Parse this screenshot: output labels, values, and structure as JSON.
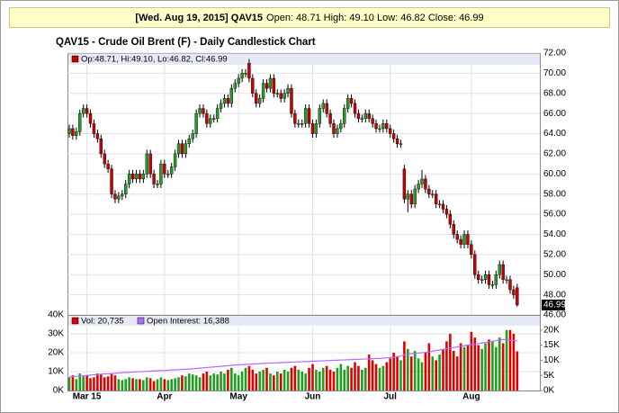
{
  "header": {
    "title": "[Wed. Aug 19, 2015] QAV15",
    "values": "Open: 48.71 High: 49.10 Low: 46.82 Close: 46.99"
  },
  "chart_data": [
    {
      "type": "candlestick",
      "title": "QAV15 - Crude Oil Brent (F) - Daily Candlestick Chart",
      "legend": "Op:48.71, Hi:49.10, Lo:46.82, Cl:46.99",
      "up_color": "#2a9a2a",
      "down_color": "#c80000",
      "open": [
        64.0,
        64.5,
        63.8,
        64.2,
        66.0,
        66.5,
        66.0,
        65.0,
        64.0,
        63.5,
        62.0,
        61.0,
        60.5,
        58.0,
        57.5,
        57.8,
        58.0,
        59.0,
        60.0,
        59.5,
        60.0,
        59.5,
        60.0,
        62.0,
        60.0,
        59.0,
        59.0,
        61.0,
        60.0,
        60.0,
        60.7,
        62.0,
        63.0,
        62.0,
        63.0,
        63.5,
        64.0,
        66.0,
        66.5,
        66.0,
        65.0,
        65.5,
        65.5,
        66.5,
        67.0,
        67.5,
        67.0,
        68.5,
        69.0,
        69.5,
        70.0,
        71.0,
        69.5,
        68.0,
        67.0,
        67.5,
        69.0,
        68.5,
        69.5,
        68.0,
        68.0,
        67.5,
        68.0,
        68.5,
        66.0,
        65.0,
        65.0,
        65.0,
        66.5,
        65.0,
        64.0,
        65.0,
        66.5,
        67.0,
        66.0,
        65.0,
        64.0,
        64.5,
        65.0,
        66.5,
        67.5,
        67.0,
        66.0,
        65.5,
        65.5,
        66.0,
        65.5,
        65.0,
        64.5,
        64.5,
        65.0,
        64.5,
        64.0,
        63.5,
        63.0,
        60.5,
        57.5,
        58.0,
        57.0,
        58.5,
        59.0,
        59.5,
        58.5,
        58.0,
        58.0,
        57.0,
        57.0,
        56.5,
        56.0,
        55.0,
        54.0,
        53.5,
        53.0,
        54.0,
        53.0,
        52.0,
        50.0,
        49.5,
        49.5,
        50.0,
        49.0,
        49.0,
        50.0,
        51.0,
        49.5,
        49.5,
        48.5,
        48.71
      ],
      "high": [
        64.9,
        64.9,
        64.6,
        66.4,
        66.9,
        66.9,
        66.4,
        65.4,
        64.4,
        63.9,
        62.4,
        61.4,
        60.9,
        58.4,
        58.2,
        58.4,
        59.4,
        60.4,
        60.4,
        60.4,
        60.4,
        60.4,
        62.4,
        62.4,
        60.4,
        59.4,
        61.4,
        61.4,
        60.4,
        61.1,
        62.4,
        63.4,
        63.4,
        63.4,
        63.9,
        64.4,
        66.4,
        66.9,
        66.9,
        66.4,
        65.9,
        65.9,
        66.9,
        67.4,
        67.9,
        67.9,
        68.9,
        69.4,
        69.9,
        70.4,
        70.4,
        71.4,
        69.9,
        68.4,
        67.9,
        69.4,
        69.4,
        69.9,
        69.9,
        68.4,
        68.4,
        68.4,
        68.9,
        68.9,
        66.4,
        65.4,
        65.4,
        66.9,
        66.9,
        65.4,
        65.4,
        66.9,
        67.4,
        67.4,
        66.4,
        65.4,
        64.9,
        65.4,
        66.9,
        67.9,
        67.9,
        67.4,
        66.4,
        65.9,
        66.4,
        66.4,
        65.9,
        65.4,
        64.9,
        65.4,
        65.4,
        64.9,
        64.4,
        63.9,
        63.4,
        60.9,
        58.4,
        58.4,
        58.9,
        59.4,
        60.4,
        59.9,
        58.9,
        58.4,
        58.4,
        57.4,
        57.4,
        56.9,
        56.4,
        55.4,
        54.4,
        53.9,
        54.4,
        54.4,
        53.4,
        52.4,
        50.4,
        49.9,
        50.4,
        50.4,
        49.4,
        50.4,
        51.4,
        51.4,
        49.9,
        49.9,
        48.9,
        49.1
      ],
      "low": [
        63.6,
        63.4,
        63.4,
        63.8,
        65.6,
        65.6,
        64.6,
        63.6,
        63.1,
        61.6,
        60.6,
        60.1,
        57.6,
        57.1,
        57.1,
        57.4,
        57.6,
        58.6,
        59.1,
        59.1,
        59.1,
        59.1,
        59.6,
        59.6,
        58.6,
        58.6,
        58.6,
        59.6,
        59.6,
        59.6,
        60.3,
        61.6,
        61.6,
        61.6,
        62.6,
        63.1,
        63.6,
        65.6,
        65.6,
        64.6,
        64.6,
        65.1,
        65.1,
        66.1,
        66.6,
        66.6,
        66.6,
        68.1,
        68.6,
        69.1,
        69.6,
        69.1,
        67.6,
        66.6,
        66.6,
        67.1,
        68.1,
        68.1,
        67.6,
        67.6,
        67.1,
        67.1,
        67.6,
        65.6,
        64.6,
        64.6,
        64.6,
        64.6,
        64.6,
        63.6,
        63.6,
        64.6,
        66.1,
        65.6,
        64.6,
        63.6,
        63.6,
        64.1,
        64.6,
        66.1,
        66.6,
        65.6,
        65.1,
        65.1,
        65.1,
        65.1,
        64.6,
        64.1,
        64.1,
        64.1,
        64.1,
        63.6,
        63.1,
        62.6,
        62.6,
        57.1,
        56.2,
        56.6,
        56.6,
        58.1,
        58.6,
        58.1,
        57.6,
        57.6,
        56.6,
        56.6,
        56.1,
        55.6,
        54.6,
        53.6,
        53.1,
        52.6,
        52.6,
        52.6,
        51.6,
        49.6,
        49.1,
        49.1,
        49.1,
        48.6,
        48.6,
        48.6,
        49.6,
        49.1,
        49.1,
        48.1,
        47.6,
        46.82
      ],
      "close": [
        64.5,
        63.8,
        64.2,
        66.0,
        66.5,
        66.0,
        65.0,
        64.0,
        63.5,
        62.0,
        61.0,
        60.5,
        58.0,
        57.5,
        57.8,
        58.0,
        59.0,
        60.0,
        59.5,
        60.0,
        59.5,
        60.0,
        62.0,
        60.0,
        59.0,
        59.0,
        61.0,
        60.0,
        60.0,
        60.7,
        62.0,
        63.0,
        62.0,
        63.0,
        63.5,
        64.0,
        66.0,
        66.5,
        66.0,
        65.0,
        65.5,
        65.5,
        66.5,
        67.0,
        67.5,
        67.0,
        68.5,
        69.0,
        69.5,
        70.0,
        70.0,
        69.5,
        68.0,
        67.0,
        67.5,
        69.0,
        68.5,
        69.5,
        68.0,
        68.0,
        67.5,
        68.0,
        68.5,
        66.0,
        65.0,
        65.0,
        65.0,
        66.5,
        65.0,
        64.0,
        65.0,
        66.5,
        67.0,
        66.0,
        65.0,
        64.0,
        64.5,
        65.0,
        66.5,
        67.5,
        67.0,
        66.0,
        65.5,
        65.5,
        66.0,
        65.5,
        65.0,
        64.5,
        64.5,
        65.0,
        64.5,
        64.0,
        63.5,
        63.0,
        63.0,
        57.5,
        58.0,
        57.0,
        58.5,
        59.0,
        59.5,
        58.5,
        58.0,
        58.0,
        57.0,
        57.0,
        56.5,
        56.0,
        55.0,
        54.0,
        53.5,
        53.0,
        54.0,
        53.0,
        52.0,
        50.0,
        49.5,
        49.5,
        50.0,
        49.0,
        49.0,
        50.0,
        51.0,
        49.5,
        49.5,
        48.5,
        48.0,
        46.99
      ],
      "ylim": [
        46,
        72
      ],
      "yticks": [
        {
          "value": 46,
          "label": "46.00"
        },
        {
          "value": 48,
          "label": "48.00"
        },
        {
          "value": 50,
          "label": "50.00"
        },
        {
          "value": 52,
          "label": "52.00"
        },
        {
          "value": 54,
          "label": "54.00"
        },
        {
          "value": 56,
          "label": "56.00"
        },
        {
          "value": 58,
          "label": "58.00"
        },
        {
          "value": 60,
          "label": "60.00"
        },
        {
          "value": 62,
          "label": "62.00"
        },
        {
          "value": 64,
          "label": "64.00"
        },
        {
          "value": 66,
          "label": "66.00"
        },
        {
          "value": 68,
          "label": "68.00"
        },
        {
          "value": 70,
          "label": "70.00"
        },
        {
          "value": 72,
          "label": "72.00"
        }
      ],
      "grid": true
    },
    {
      "type": "bar",
      "categories": [
        null,
        null,
        null,
        null,
        null,
        "Mar 15",
        null,
        null,
        null,
        null,
        null,
        null,
        null,
        null,
        null,
        null,
        null,
        null,
        null,
        null,
        null,
        null,
        null,
        null,
        null,
        null,
        null,
        "Apr",
        null,
        null,
        null,
        null,
        null,
        null,
        null,
        null,
        null,
        null,
        null,
        null,
        null,
        null,
        null,
        null,
        null,
        null,
        null,
        null,
        "May",
        null,
        null,
        null,
        null,
        null,
        null,
        null,
        null,
        null,
        null,
        null,
        null,
        null,
        null,
        null,
        null,
        null,
        null,
        null,
        null,
        "Jun",
        null,
        null,
        null,
        null,
        null,
        null,
        null,
        null,
        null,
        null,
        null,
        null,
        null,
        null,
        null,
        null,
        null,
        null,
        null,
        null,
        null,
        "Jul",
        null,
        null,
        null,
        null,
        null,
        null,
        null,
        null,
        null,
        null,
        null,
        null,
        null,
        null,
        null,
        null,
        null,
        null,
        null,
        null,
        null,
        null,
        "Aug",
        null,
        null,
        null,
        null,
        null,
        null,
        null,
        null,
        null,
        null,
        null,
        null,
        null
      ],
      "series": [
        {
          "name": "Vol: 20,735",
          "color": "#e00000",
          "up_color": "#1f9e1f",
          "values": [
            7000,
            8000,
            6000,
            9000,
            7500,
            8000,
            6500,
            7000,
            9000,
            8500,
            7000,
            7500,
            9000,
            8000,
            6000,
            5500,
            6000,
            7000,
            6500,
            6000,
            6000,
            5500,
            7000,
            6500,
            5000,
            6000,
            7000,
            6000,
            5500,
            6000,
            6500,
            7000,
            8000,
            7500,
            9000,
            8500,
            8000,
            7000,
            9000,
            10000,
            8000,
            9000,
            8500,
            10000,
            9000,
            11000,
            12000,
            9000,
            8000,
            10000,
            12000,
            13000,
            11000,
            9000,
            10000,
            11000,
            12000,
            9000,
            8000,
            10000,
            9000,
            11000,
            10000,
            12000,
            13000,
            11000,
            10000,
            9000,
            12000,
            14000,
            11000,
            10000,
            12000,
            13000,
            11000,
            10000,
            12000,
            14000,
            11000,
            13000,
            12000,
            15000,
            13000,
            11000,
            12000,
            19000,
            16000,
            14000,
            12000,
            13000,
            15000,
            17000,
            20000,
            18000,
            16000,
            26000,
            22000,
            18000,
            21000,
            17000,
            15000,
            20000,
            25000,
            18000,
            16000,
            19000,
            22000,
            26000,
            30000,
            21000,
            18000,
            25000,
            23000,
            24000,
            31000,
            28000,
            24000,
            22000,
            25000,
            27000,
            26000,
            23000,
            28000,
            25000,
            32000,
            32000,
            30000,
            20735
          ]
        },
        {
          "name": "Open Interest: 16,388",
          "color": "#b36bff",
          "axis": "y2",
          "values": [
            4500,
            4600,
            4700,
            4800,
            4900,
            5000,
            5100,
            5200,
            5300,
            5400,
            5500,
            5500,
            5600,
            5700,
            5800,
            5900,
            6000,
            6000,
            6100,
            6200,
            6200,
            6300,
            6300,
            6400,
            6500,
            6500,
            6600,
            6600,
            6700,
            6800,
            6800,
            6900,
            7000,
            7000,
            7100,
            7200,
            7300,
            7400,
            7500,
            7600,
            7700,
            7800,
            7900,
            8000,
            8100,
            8200,
            8300,
            8400,
            8500,
            8600,
            8600,
            8700,
            8800,
            8800,
            8900,
            9000,
            9000,
            9100,
            9100,
            9200,
            9200,
            9300,
            9300,
            9400,
            9400,
            9500,
            9500,
            9600,
            9600,
            9700,
            9700,
            9800,
            9800,
            9900,
            9900,
            10000,
            10000,
            10100,
            10100,
            10200,
            10200,
            10300,
            10300,
            10400,
            10400,
            10500,
            10500,
            10600,
            10600,
            10700,
            10800,
            10900,
            11000,
            11200,
            11400,
            11800,
            12000,
            12200,
            12300,
            12400,
            12500,
            12600,
            12800,
            13000,
            13200,
            13400,
            13600,
            13800,
            14000,
            14200,
            14400,
            14600,
            14800,
            15000,
            15200,
            15300,
            15500,
            15700,
            15900,
            16100,
            16300,
            16500,
            16700,
            16900,
            16800,
            16600,
            16500,
            16388
          ]
        }
      ],
      "ylim": [
        0,
        40000
      ],
      "yticks": [
        {
          "value": 0,
          "label": "0K"
        },
        {
          "value": 10000,
          "label": "10K"
        },
        {
          "value": 20000,
          "label": "20K"
        },
        {
          "value": 30000,
          "label": "30K"
        },
        {
          "value": 40000,
          "label": "40K"
        }
      ],
      "y2lim": [
        0,
        25000
      ],
      "y2ticks": [
        {
          "value": 0,
          "label": "0K"
        },
        {
          "value": 5000,
          "label": "5K"
        },
        {
          "value": 10000,
          "label": "10K"
        },
        {
          "value": 15000,
          "label": "15K"
        },
        {
          "value": 20000,
          "label": "20K"
        }
      ],
      "grid": true
    }
  ]
}
